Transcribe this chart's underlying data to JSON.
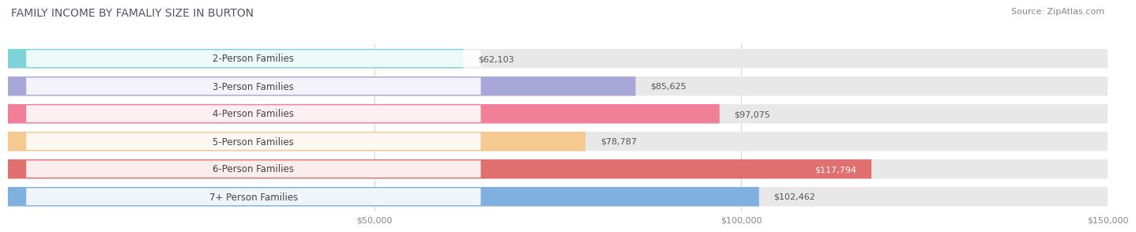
{
  "title": "FAMILY INCOME BY FAMALIY SIZE IN BURTON",
  "source": "Source: ZipAtlas.com",
  "categories": [
    "2-Person Families",
    "3-Person Families",
    "4-Person Families",
    "5-Person Families",
    "6-Person Families",
    "7+ Person Families"
  ],
  "values": [
    62103,
    85625,
    97075,
    78787,
    117794,
    102462
  ],
  "labels": [
    "$62,103",
    "$85,625",
    "$97,075",
    "$78,787",
    "$117,794",
    "$102,462"
  ],
  "bar_colors": [
    "#7dd3d8",
    "#a8a8d8",
    "#f08098",
    "#f5c990",
    "#e07070",
    "#80b0e0"
  ],
  "bar_bg_color": "#e8e8e8",
  "label_inside": [
    false,
    false,
    false,
    false,
    true,
    false
  ],
  "xlim": [
    0,
    150000
  ],
  "xticks": [
    50000,
    100000,
    150000
  ],
  "xtick_labels": [
    "$50,000",
    "$100,000",
    "$150,000"
  ],
  "title_fontsize": 10,
  "source_fontsize": 8,
  "bar_label_fontsize": 8,
  "category_fontsize": 8.5,
  "background_color": "#ffffff"
}
